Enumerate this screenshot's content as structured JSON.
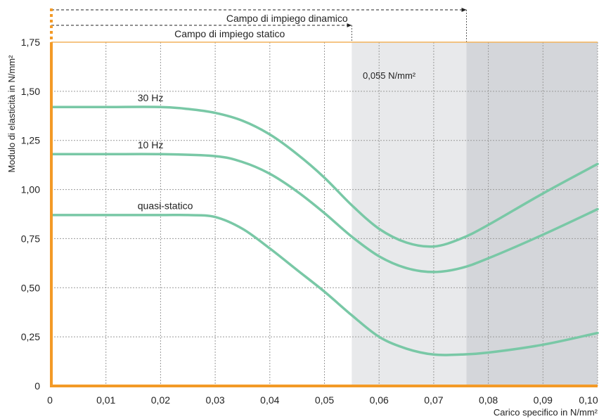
{
  "chart_data": {
    "type": "line",
    "xlabel": "Carico specifico in N/mm²",
    "ylabel": "Modulo di elasticità in N/mm²",
    "xlim": [
      0,
      0.1
    ],
    "ylim": [
      0,
      1.75
    ],
    "x_ticks": [
      {
        "v": 0,
        "label": "0"
      },
      {
        "v": 0.01,
        "label": "0,01"
      },
      {
        "v": 0.02,
        "label": "0,02"
      },
      {
        "v": 0.03,
        "label": "0,03"
      },
      {
        "v": 0.04,
        "label": "0,04"
      },
      {
        "v": 0.05,
        "label": "0,05"
      },
      {
        "v": 0.06,
        "label": "0,06"
      },
      {
        "v": 0.07,
        "label": "0,07"
      },
      {
        "v": 0.08,
        "label": "0,08"
      },
      {
        "v": 0.09,
        "label": "0,09"
      },
      {
        "v": 0.1,
        "label": "0,10"
      }
    ],
    "y_ticks": [
      {
        "v": 0,
        "label": "0"
      },
      {
        "v": 0.25,
        "label": "0,25"
      },
      {
        "v": 0.5,
        "label": "0,50"
      },
      {
        "v": 0.75,
        "label": "0,75"
      },
      {
        "v": 1.0,
        "label": "1,00"
      },
      {
        "v": 1.25,
        "label": "1,25"
      },
      {
        "v": 1.5,
        "label": "1,50"
      },
      {
        "v": 1.75,
        "label": "1,75"
      }
    ],
    "grid": true,
    "ranges": [
      {
        "name": "Campo di impiego statico",
        "from": 0,
        "to": 0.055
      },
      {
        "name": "Campo di impiego dinamico",
        "from": 0,
        "to": 0.076
      }
    ],
    "bands": [
      {
        "from": 0.055,
        "to": 0.076,
        "color": "#e8e9eb"
      },
      {
        "from": 0.076,
        "to": 0.1,
        "color": "#d4d6da"
      }
    ],
    "annotation": "0,055 N/mm²",
    "series": [
      {
        "name": "30 Hz",
        "x": [
          0,
          0.01,
          0.02,
          0.025,
          0.03,
          0.035,
          0.04,
          0.045,
          0.05,
          0.055,
          0.06,
          0.065,
          0.07,
          0.075,
          0.08,
          0.09,
          0.1
        ],
        "y": [
          1.42,
          1.42,
          1.42,
          1.41,
          1.39,
          1.35,
          1.28,
          1.18,
          1.06,
          0.92,
          0.8,
          0.73,
          0.71,
          0.75,
          0.82,
          0.98,
          1.13
        ]
      },
      {
        "name": "10 Hz",
        "x": [
          0,
          0.01,
          0.02,
          0.03,
          0.035,
          0.04,
          0.045,
          0.05,
          0.055,
          0.06,
          0.065,
          0.07,
          0.075,
          0.08,
          0.09,
          0.1
        ],
        "y": [
          1.18,
          1.18,
          1.18,
          1.17,
          1.14,
          1.08,
          0.99,
          0.88,
          0.76,
          0.66,
          0.6,
          0.58,
          0.6,
          0.65,
          0.77,
          0.9
        ]
      },
      {
        "name": "quasi-statico",
        "x": [
          0,
          0.01,
          0.02,
          0.025,
          0.03,
          0.035,
          0.04,
          0.045,
          0.05,
          0.055,
          0.06,
          0.065,
          0.07,
          0.075,
          0.08,
          0.09,
          0.1
        ],
        "y": [
          0.87,
          0.87,
          0.87,
          0.87,
          0.86,
          0.8,
          0.7,
          0.59,
          0.48,
          0.36,
          0.25,
          0.19,
          0.16,
          0.16,
          0.17,
          0.21,
          0.27
        ]
      }
    ]
  },
  "colors": {
    "axis": "#f39a27",
    "curve": "#79c8a6",
    "grid": "#9a9a9a",
    "top_line": "#f2b25b"
  }
}
